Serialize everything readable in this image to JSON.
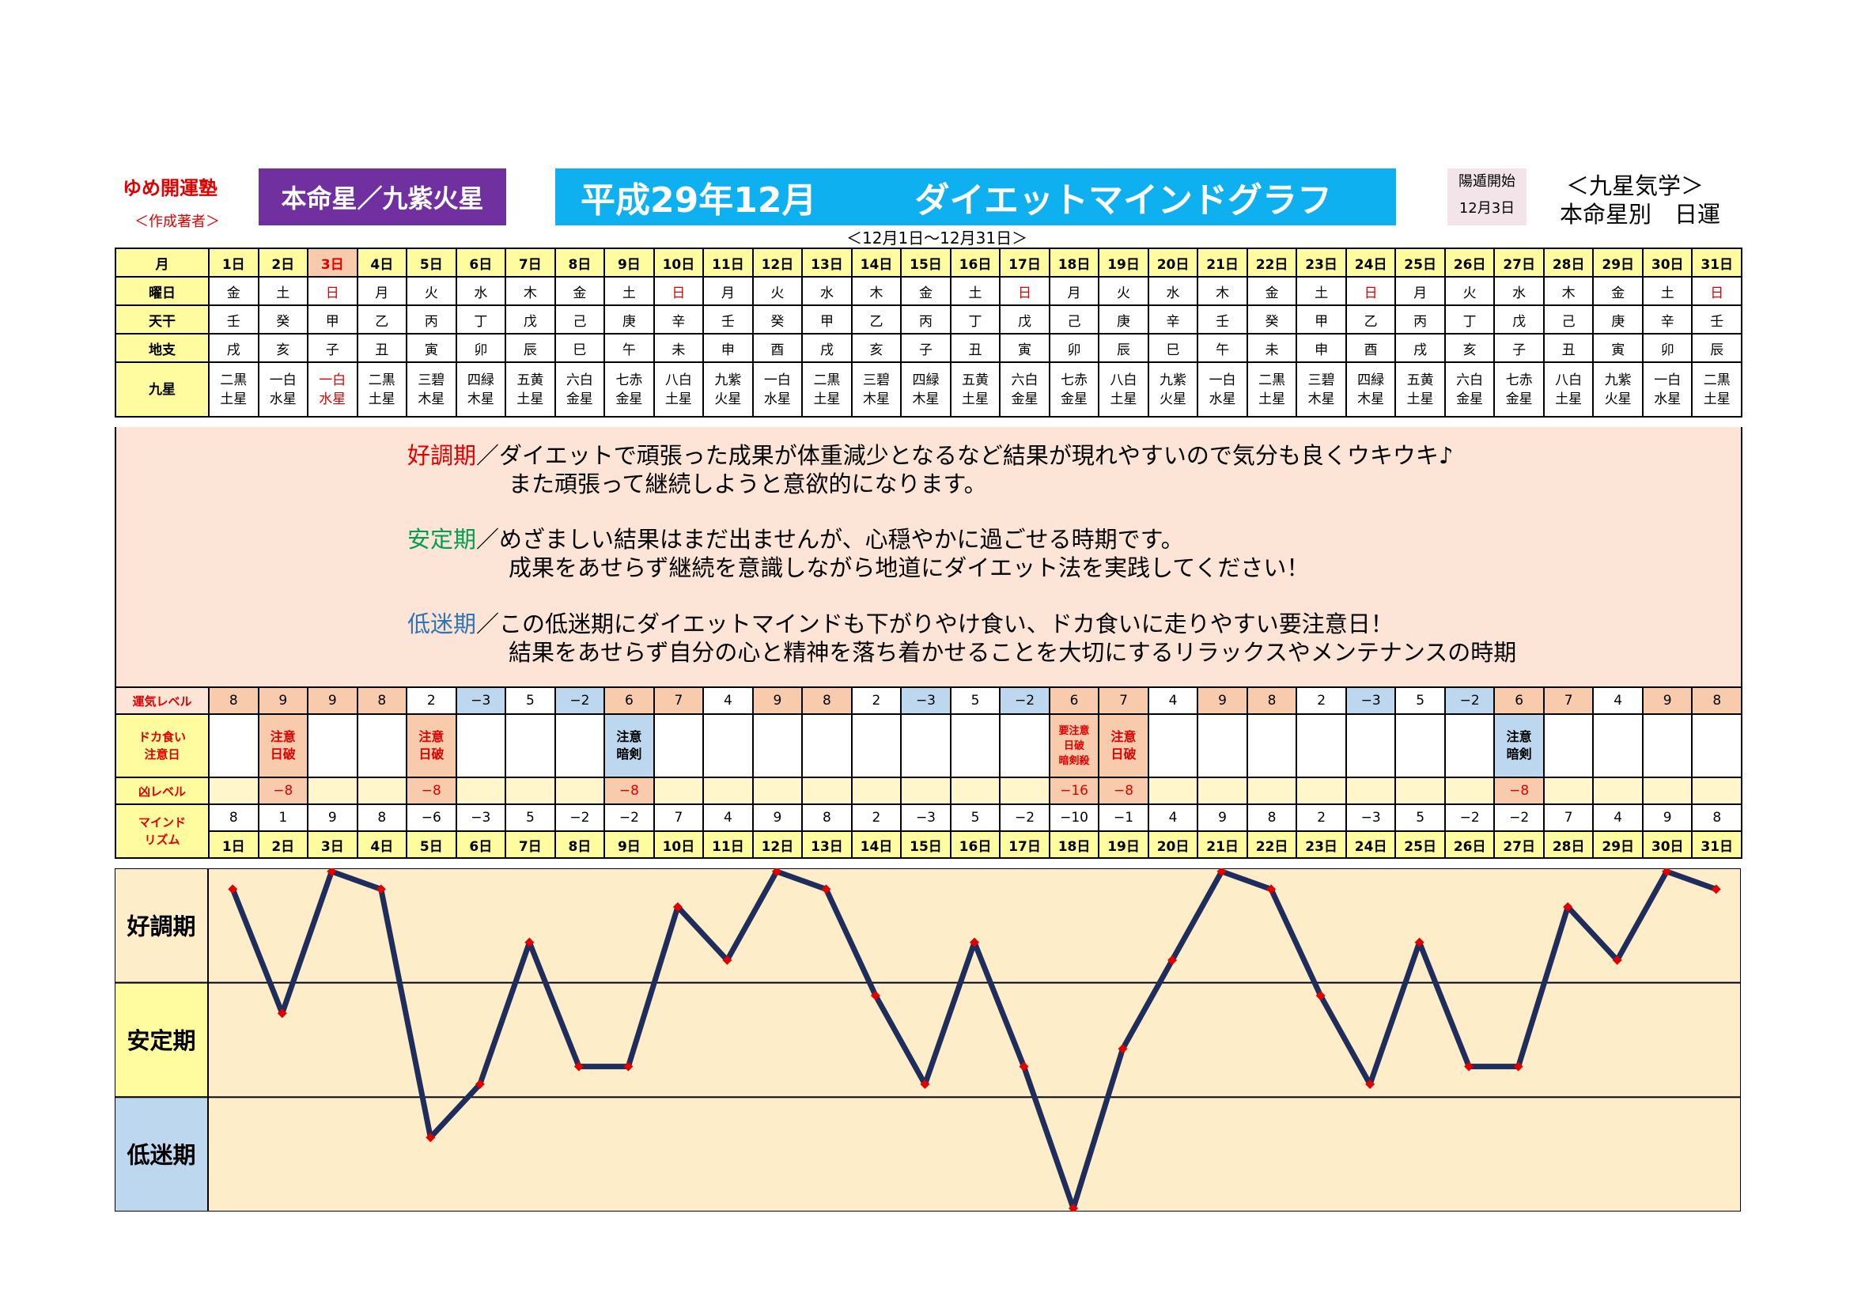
{
  "brand": {
    "name": "ゆめ開運塾",
    "author": "＜作成著者＞"
  },
  "honmei_box": "本命星／九紫火星",
  "title": {
    "year_month": "平成29年12月",
    "name": "ダイエットマインドグラフ"
  },
  "range": "＜12月1日～12月31日＞",
  "kaiun": {
    "label": "陽遁開始",
    "date": "12月3日"
  },
  "right_title": {
    "line1": "＜九星気学＞",
    "line2": "本命星別　日運"
  },
  "row_labels": {
    "month": "月",
    "weekday": "曜日",
    "tenkan": "天干",
    "chishi": "地支",
    "kyusei": "九星",
    "luck": "運気レベル",
    "doka_1": "ドカ食い",
    "doka_2": "注意日",
    "kyou": "凶レベル",
    "mind_1": "マインド",
    "mind_2": "リズム"
  },
  "days": [
    "1日",
    "2日",
    "3日",
    "4日",
    "5日",
    "6日",
    "7日",
    "8日",
    "9日",
    "10日",
    "11日",
    "12日",
    "13日",
    "14日",
    "15日",
    "16日",
    "17日",
    "18日",
    "19日",
    "20日",
    "21日",
    "22日",
    "23日",
    "24日",
    "25日",
    "26日",
    "27日",
    "28日",
    "29日",
    "30日",
    "31日"
  ],
  "weekdays": [
    "金",
    "土",
    "日",
    "月",
    "火",
    "水",
    "木",
    "金",
    "土",
    "日",
    "月",
    "火",
    "水",
    "木",
    "金",
    "土",
    "日",
    "月",
    "火",
    "水",
    "木",
    "金",
    "土",
    "日",
    "月",
    "火",
    "水",
    "木",
    "金",
    "土",
    "日"
  ],
  "tenkan": [
    "壬",
    "癸",
    "甲",
    "乙",
    "丙",
    "丁",
    "戊",
    "己",
    "庚",
    "辛",
    "壬",
    "癸",
    "甲",
    "乙",
    "丙",
    "丁",
    "戊",
    "己",
    "庚",
    "辛",
    "壬",
    "癸",
    "甲",
    "乙",
    "丙",
    "丁",
    "戊",
    "己",
    "庚",
    "辛",
    "壬"
  ],
  "chishi": [
    "戌",
    "亥",
    "子",
    "丑",
    "寅",
    "卯",
    "辰",
    "巳",
    "午",
    "未",
    "申",
    "酉",
    "戌",
    "亥",
    "子",
    "丑",
    "寅",
    "卯",
    "辰",
    "巳",
    "午",
    "未",
    "申",
    "酉",
    "戌",
    "亥",
    "子",
    "丑",
    "寅",
    "卯",
    "辰"
  ],
  "kyusei_top": [
    "二黒",
    "一白",
    "一白",
    "二黒",
    "三碧",
    "四緑",
    "五黄",
    "六白",
    "七赤",
    "八白",
    "九紫",
    "一白",
    "二黒",
    "三碧",
    "四緑",
    "五黄",
    "六白",
    "七赤",
    "八白",
    "九紫",
    "一白",
    "二黒",
    "三碧",
    "四緑",
    "五黄",
    "六白",
    "七赤",
    "八白",
    "九紫",
    "一白",
    "二黒"
  ],
  "kyusei_bottom": [
    "土星",
    "水星",
    "水星",
    "土星",
    "木星",
    "木星",
    "土星",
    "金星",
    "金星",
    "土星",
    "火星",
    "水星",
    "土星",
    "木星",
    "木星",
    "土星",
    "金星",
    "金星",
    "土星",
    "火星",
    "水星",
    "土星",
    "木星",
    "木星",
    "土星",
    "金星",
    "金星",
    "土星",
    "火星",
    "水星",
    "土星"
  ],
  "desc": {
    "good_label": "好調期",
    "good_1": "／ダイエットで頑張った成果が体重減少となるなど結果が現れやすいので気分も良くウキウキ♪",
    "good_2": "また頑張って継続しようと意欲的になります。",
    "stable_label": "安定期",
    "stable_1": "／めざましい結果はまだ出ませんが、心穏やかに過ごせる時期です。",
    "stable_2": "成果をあせらず継続を意識しながら地道にダイエット法を実践してください！",
    "low_label": "低迷期",
    "low_1": "／この低迷期にダイエットマインドも下がりやけ食い、ドカ食いに走りやすい要注意日！",
    "low_2": "結果をあせらず自分の心と精神を落ち着かせることを大切にするリラックスやメンテナンスの時期"
  },
  "luck": [
    "8",
    "9",
    "9",
    "8",
    "2",
    "−3",
    "5",
    "−2",
    "6",
    "7",
    "4",
    "9",
    "8",
    "2",
    "−3",
    "5",
    "−2",
    "6",
    "7",
    "4",
    "9",
    "8",
    "2",
    "−3",
    "5",
    "−2",
    "6",
    "7",
    "4",
    "9",
    "8"
  ],
  "doka": [
    "",
    "注意\n日破",
    "",
    "",
    "注意\n日破",
    "",
    "",
    "",
    "注意\n暗剣",
    "",
    "",
    "",
    "",
    "",
    "",
    "",
    "",
    "要注意\n日破\n暗剣殺",
    "注意\n日破",
    "",
    "",
    "",
    "",
    "",
    "",
    "",
    "注意\n暗剣",
    "",
    "",
    "",
    ""
  ],
  "kyou": [
    "",
    "−8",
    "",
    "",
    "−8",
    "",
    "",
    "",
    "−8",
    "",
    "",
    "",
    "",
    "",
    "",
    "",
    "",
    "−16",
    "−8",
    "",
    "",
    "",
    "",
    "",
    "",
    "",
    "−8",
    "",
    "",
    "",
    ""
  ],
  "mind": [
    "8",
    "1",
    "9",
    "8",
    "−6",
    "−3",
    "5",
    "−2",
    "−2",
    "7",
    "4",
    "9",
    "8",
    "2",
    "−3",
    "5",
    "−2",
    "−10",
    "−1",
    "4",
    "9",
    "8",
    "2",
    "−3",
    "5",
    "−2",
    "−2",
    "7",
    "4",
    "9",
    "8"
  ],
  "chart_labels": {
    "good": "好調期",
    "stable": "安定期",
    "low": "低迷期"
  },
  "chart_data": {
    "type": "line",
    "x": [
      1,
      2,
      3,
      4,
      5,
      6,
      7,
      8,
      9,
      10,
      11,
      12,
      13,
      14,
      15,
      16,
      17,
      18,
      19,
      20,
      21,
      22,
      23,
      24,
      25,
      26,
      27,
      28,
      29,
      30,
      31
    ],
    "series": [
      {
        "values": [
          8,
          1,
          9,
          8,
          -6,
          -3,
          5,
          -2,
          -2,
          7,
          4,
          9,
          8,
          2,
          -3,
          5,
          -2,
          -10,
          -1,
          4,
          9,
          8,
          2,
          -3,
          5,
          -2,
          -2,
          7,
          4,
          9,
          8
        ]
      }
    ],
    "ylim": [
      -10,
      9
    ],
    "zones": [
      "好調期",
      "安定期",
      "低迷期"
    ],
    "colors": {
      "line": "#1f2d5c",
      "marker": "#e00000",
      "background": "#fdedc8"
    }
  },
  "colors": {
    "purple": "#7030a0",
    "blue": "#0fb0ef",
    "red": "#e00000",
    "green": "#00a050",
    "steel": "#2e75b6"
  }
}
